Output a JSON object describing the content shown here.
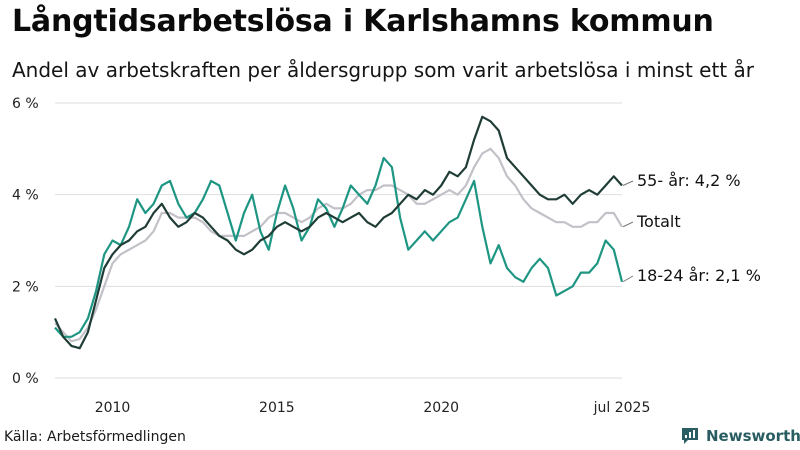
{
  "title": "Långtidsarbetslösa i Karlshamns kommun",
  "subtitle": "Andel av arbetskraften per åldersgrupp som varit arbetslösa i minst ett år",
  "source": "Källa: Arbetsförmedlingen",
  "brand": "Newsworthy",
  "colors": {
    "age55": "#1f3d36",
    "total": "#c3c0c8",
    "age1824": "#1e9683",
    "grid": "#dedede"
  },
  "chart_data": {
    "type": "line",
    "ylim": [
      0,
      6
    ],
    "y_ticks": [
      0,
      2,
      4,
      6
    ],
    "y_tick_labels": [
      "0 %",
      "2 %",
      "4 %",
      "6 %"
    ],
    "x_range": [
      2008.25,
      2025.5
    ],
    "x_ticks": [
      2010,
      2015,
      2020,
      2025.5
    ],
    "x_tick_labels": [
      "2010",
      "2015",
      "2020",
      "jul 2025"
    ],
    "series": [
      {
        "key": "age55",
        "label": "55- år: 4,2 %",
        "x": [
          2008.25,
          2008.5,
          2008.75,
          2009.0,
          2009.25,
          2009.5,
          2009.75,
          2010.0,
          2010.25,
          2010.5,
          2010.75,
          2011.0,
          2011.25,
          2011.5,
          2011.75,
          2012.0,
          2012.25,
          2012.5,
          2012.75,
          2013.0,
          2013.25,
          2013.5,
          2013.75,
          2014.0,
          2014.25,
          2014.5,
          2014.75,
          2015.0,
          2015.25,
          2015.5,
          2015.75,
          2016.0,
          2016.25,
          2016.5,
          2016.75,
          2017.0,
          2017.25,
          2017.5,
          2017.75,
          2018.0,
          2018.25,
          2018.5,
          2018.75,
          2019.0,
          2019.25,
          2019.5,
          2019.75,
          2020.0,
          2020.25,
          2020.5,
          2020.75,
          2021.0,
          2021.25,
          2021.5,
          2021.75,
          2022.0,
          2022.25,
          2022.5,
          2022.75,
          2023.0,
          2023.25,
          2023.5,
          2023.75,
          2024.0,
          2024.25,
          2024.5,
          2024.75,
          2025.0,
          2025.25,
          2025.5
        ],
        "values": [
          1.3,
          0.9,
          0.7,
          0.65,
          1.0,
          1.7,
          2.4,
          2.7,
          2.9,
          3.0,
          3.2,
          3.3,
          3.6,
          3.8,
          3.5,
          3.3,
          3.4,
          3.6,
          3.5,
          3.3,
          3.1,
          3.0,
          2.8,
          2.7,
          2.8,
          3.0,
          3.1,
          3.3,
          3.4,
          3.3,
          3.2,
          3.3,
          3.5,
          3.6,
          3.5,
          3.4,
          3.5,
          3.6,
          3.4,
          3.3,
          3.5,
          3.6,
          3.8,
          4.0,
          3.9,
          4.1,
          4.0,
          4.2,
          4.5,
          4.4,
          4.6,
          5.2,
          5.7,
          5.6,
          5.4,
          4.8,
          4.6,
          4.4,
          4.2,
          4.0,
          3.9,
          3.9,
          4.0,
          3.8,
          4.0,
          4.1,
          4.0,
          4.2,
          4.4,
          4.2
        ]
      },
      {
        "key": "total",
        "label": "Totalt",
        "x": [
          2008.25,
          2008.5,
          2008.75,
          2009.0,
          2009.25,
          2009.5,
          2009.75,
          2010.0,
          2010.25,
          2010.5,
          2010.75,
          2011.0,
          2011.25,
          2011.5,
          2011.75,
          2012.0,
          2012.25,
          2012.5,
          2012.75,
          2013.0,
          2013.25,
          2013.5,
          2013.75,
          2014.0,
          2014.25,
          2014.5,
          2014.75,
          2015.0,
          2015.25,
          2015.5,
          2015.75,
          2016.0,
          2016.25,
          2016.5,
          2016.75,
          2017.0,
          2017.25,
          2017.5,
          2017.75,
          2018.0,
          2018.25,
          2018.5,
          2018.75,
          2019.0,
          2019.25,
          2019.5,
          2019.75,
          2020.0,
          2020.25,
          2020.5,
          2020.75,
          2021.0,
          2021.25,
          2021.5,
          2021.75,
          2022.0,
          2022.25,
          2022.5,
          2022.75,
          2023.0,
          2023.25,
          2023.5,
          2023.75,
          2024.0,
          2024.25,
          2024.5,
          2024.75,
          2025.0,
          2025.25,
          2025.5
        ],
        "values": [
          1.2,
          1.0,
          0.8,
          0.85,
          1.1,
          1.5,
          2.0,
          2.5,
          2.7,
          2.8,
          2.9,
          3.0,
          3.2,
          3.6,
          3.6,
          3.5,
          3.5,
          3.5,
          3.4,
          3.2,
          3.1,
          3.1,
          3.1,
          3.1,
          3.2,
          3.3,
          3.5,
          3.6,
          3.6,
          3.5,
          3.4,
          3.5,
          3.7,
          3.8,
          3.7,
          3.7,
          3.8,
          4.0,
          4.1,
          4.1,
          4.2,
          4.2,
          4.1,
          4.0,
          3.8,
          3.8,
          3.9,
          4.0,
          4.1,
          4.0,
          4.2,
          4.6,
          4.9,
          5.0,
          4.8,
          4.4,
          4.2,
          3.9,
          3.7,
          3.6,
          3.5,
          3.4,
          3.4,
          3.3,
          3.3,
          3.4,
          3.4,
          3.6,
          3.6,
          3.3
        ]
      },
      {
        "key": "age1824",
        "label": "18-24 år: 2,1 %",
        "x": [
          2008.25,
          2008.5,
          2008.75,
          2009.0,
          2009.25,
          2009.5,
          2009.75,
          2010.0,
          2010.25,
          2010.5,
          2010.75,
          2011.0,
          2011.25,
          2011.5,
          2011.75,
          2012.0,
          2012.25,
          2012.5,
          2012.75,
          2013.0,
          2013.25,
          2013.5,
          2013.75,
          2014.0,
          2014.25,
          2014.5,
          2014.75,
          2015.0,
          2015.25,
          2015.5,
          2015.75,
          2016.0,
          2016.25,
          2016.5,
          2016.75,
          2017.0,
          2017.25,
          2017.5,
          2017.75,
          2018.0,
          2018.25,
          2018.5,
          2018.75,
          2019.0,
          2019.25,
          2019.5,
          2019.75,
          2020.0,
          2020.25,
          2020.5,
          2020.75,
          2021.0,
          2021.25,
          2021.5,
          2021.75,
          2022.0,
          2022.25,
          2022.5,
          2022.75,
          2023.0,
          2023.25,
          2023.5,
          2023.75,
          2024.0,
          2024.25,
          2024.5,
          2024.75,
          2025.0,
          2025.25,
          2025.5
        ],
        "values": [
          1.1,
          0.9,
          0.9,
          1.0,
          1.3,
          1.9,
          2.7,
          3.0,
          2.9,
          3.3,
          3.9,
          3.6,
          3.8,
          4.2,
          4.3,
          3.8,
          3.5,
          3.6,
          3.9,
          4.3,
          4.2,
          3.6,
          3.0,
          3.6,
          4.0,
          3.2,
          2.8,
          3.6,
          4.2,
          3.7,
          3.0,
          3.3,
          3.9,
          3.7,
          3.3,
          3.7,
          4.2,
          4.0,
          3.8,
          4.2,
          4.8,
          4.6,
          3.5,
          2.8,
          3.0,
          3.2,
          3.0,
          3.2,
          3.4,
          3.5,
          3.9,
          4.3,
          3.3,
          2.5,
          2.9,
          2.4,
          2.2,
          2.1,
          2.4,
          2.6,
          2.4,
          1.8,
          1.9,
          2.0,
          2.3,
          2.3,
          2.5,
          3.0,
          2.8,
          2.1
        ]
      }
    ]
  }
}
